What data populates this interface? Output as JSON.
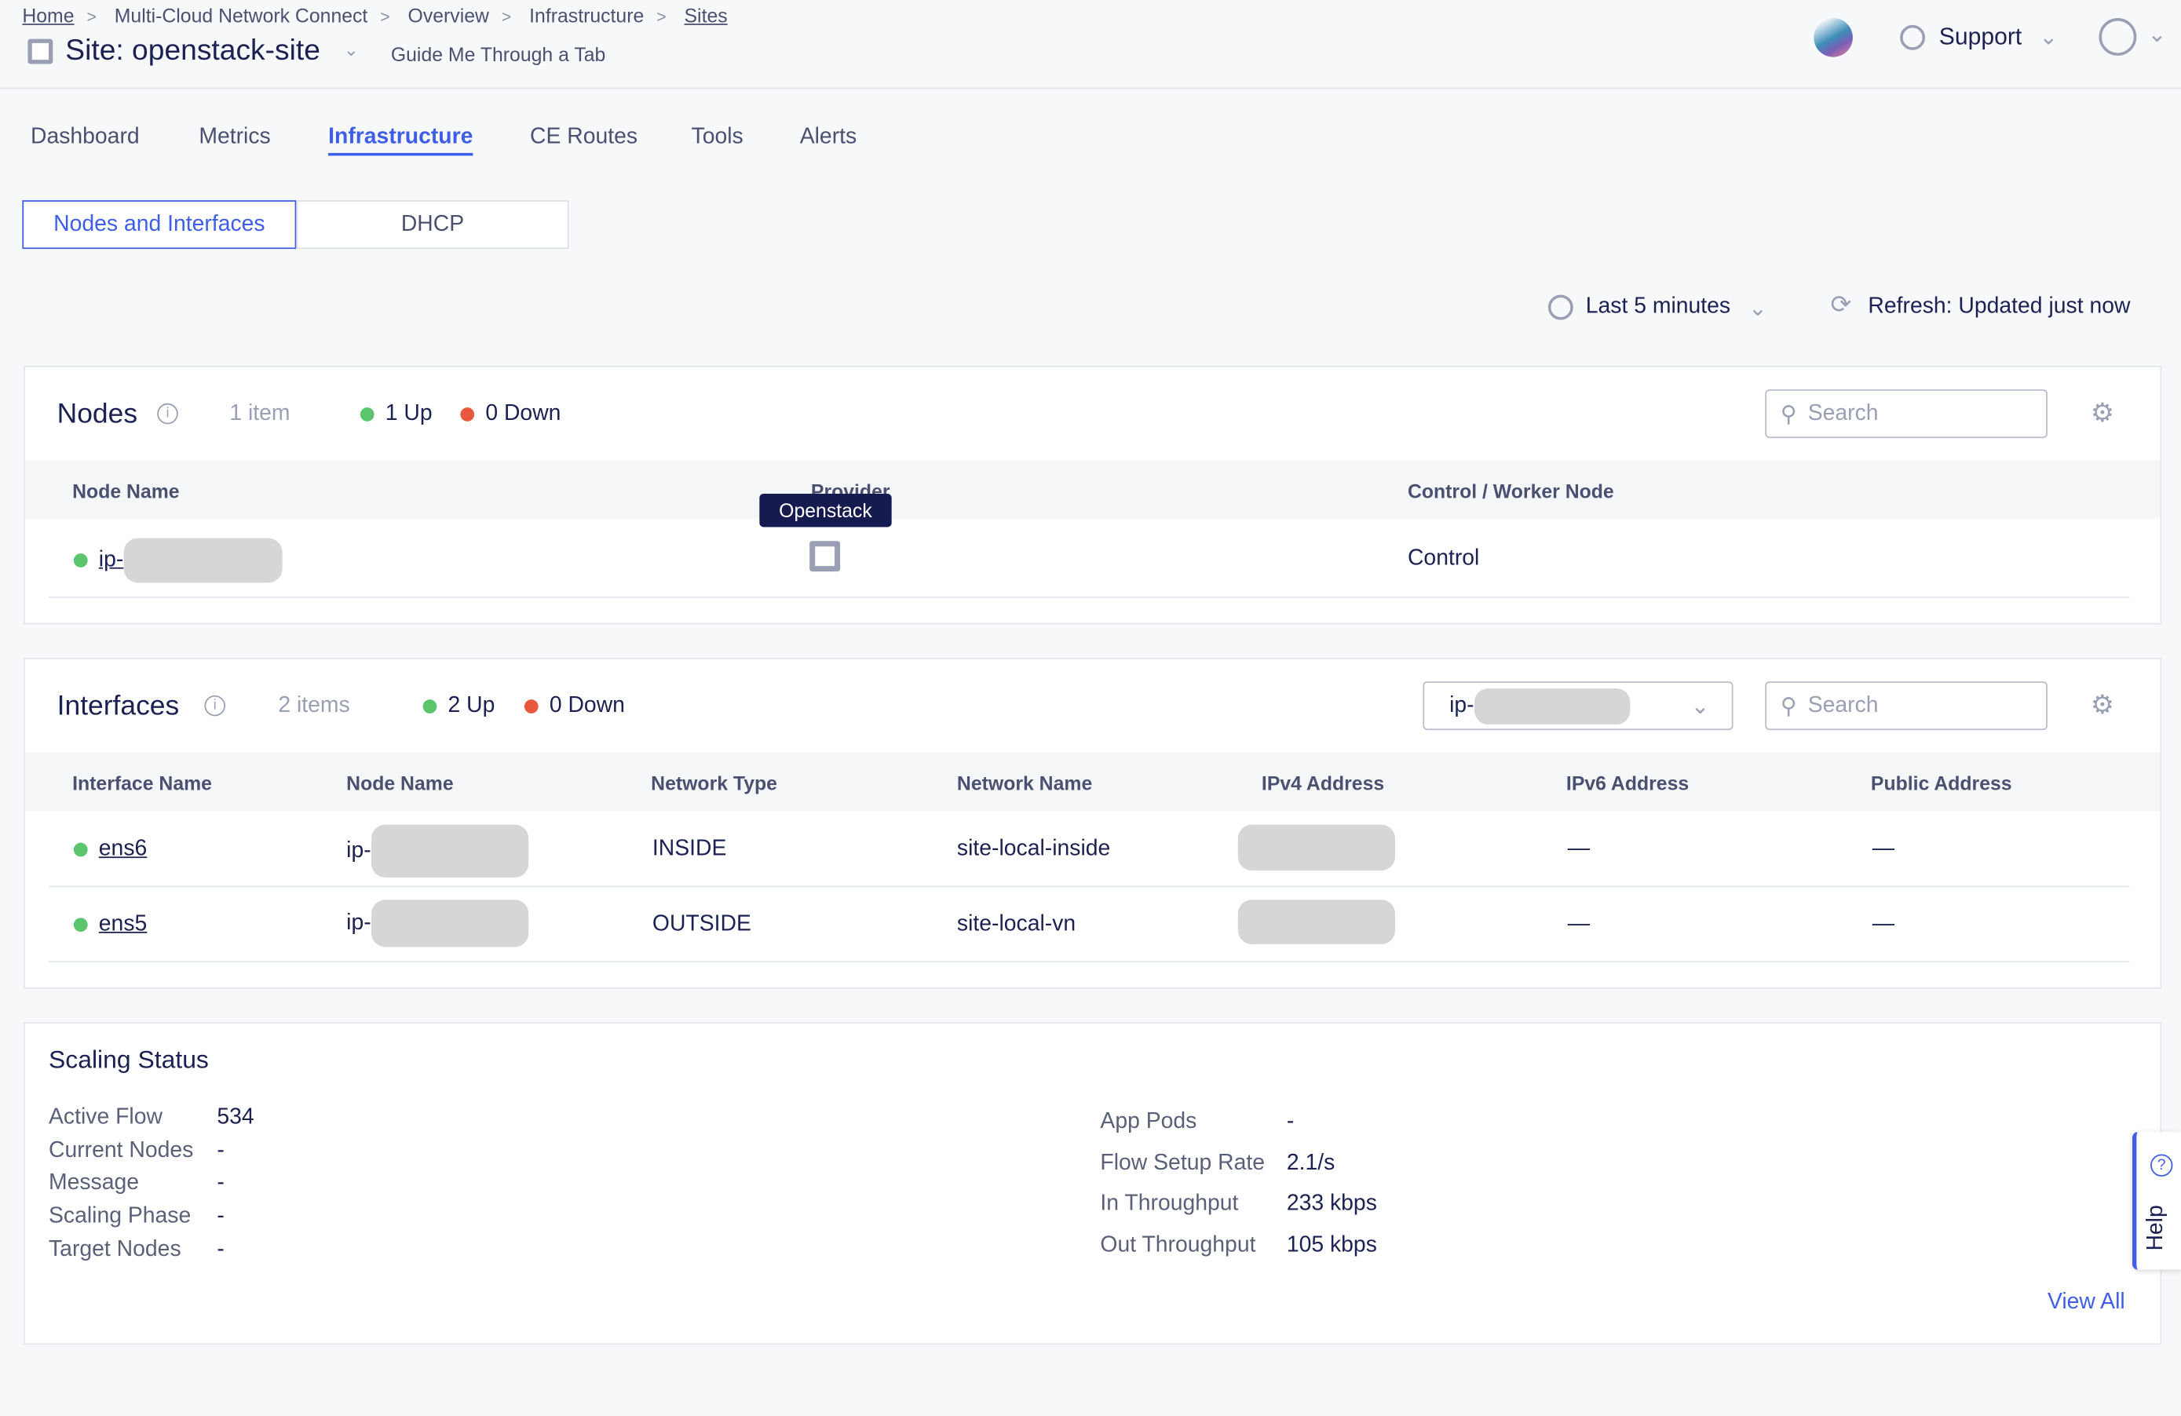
{
  "breadcrumb": [
    "Home",
    "Multi-Cloud Network Connect",
    "Overview",
    "Infrastructure",
    "Sites"
  ],
  "page_title": "Site: openstack-site",
  "guide_link": "Guide Me Through a Tab",
  "header": {
    "support": "Support"
  },
  "tabs": [
    {
      "label": "Dashboard"
    },
    {
      "label": "Metrics"
    },
    {
      "label": "Infrastructure",
      "active": true
    },
    {
      "label": "CE Routes"
    },
    {
      "label": "Tools"
    },
    {
      "label": "Alerts"
    }
  ],
  "subtabs": [
    {
      "label": "Nodes and Interfaces",
      "active": true
    },
    {
      "label": "DHCP"
    }
  ],
  "toolbar": {
    "time_range": "Last 5 minutes",
    "refresh": "Refresh: Updated just now"
  },
  "nodes": {
    "title": "Nodes",
    "count": "1 item",
    "up": "1 Up",
    "down": "0 Down",
    "search_placeholder": "Search",
    "columns": [
      "Node Name",
      "Provider",
      "Control / Worker Node"
    ],
    "tooltip": "Openstack",
    "rows": [
      {
        "name": "ip-",
        "role": "Control",
        "status": "up"
      }
    ]
  },
  "interfaces": {
    "title": "Interfaces",
    "count": "2 items",
    "up": "2 Up",
    "down": "0 Down",
    "search_placeholder": "Search",
    "node_filter": "ip-",
    "columns": [
      "Interface Name",
      "Node Name",
      "Network Type",
      "Network Name",
      "IPv4 Address",
      "IPv6 Address",
      "Public Address"
    ],
    "rows": [
      {
        "name": "ens6",
        "node": "ip-",
        "type": "INSIDE",
        "network": "site-local-inside",
        "ipv6": "—",
        "public": "—"
      },
      {
        "name": "ens5",
        "node": "ip-",
        "type": "OUTSIDE",
        "network": "site-local-vn",
        "ipv6": "—",
        "public": "—"
      }
    ]
  },
  "scaling": {
    "title": "Scaling Status",
    "left": [
      {
        "k": "Active Flow",
        "v": "534"
      },
      {
        "k": "Current Nodes",
        "v": "-"
      },
      {
        "k": "Message",
        "v": "-"
      },
      {
        "k": "Scaling Phase",
        "v": "-"
      },
      {
        "k": "Target Nodes",
        "v": "-"
      }
    ],
    "right": [
      {
        "k": "App Pods",
        "v": "-"
      },
      {
        "k": "Flow Setup Rate",
        "v": "2.1/s"
      },
      {
        "k": "In Throughput",
        "v": "233 kbps"
      },
      {
        "k": "Out Throughput",
        "v": "105 kbps"
      }
    ],
    "view_all": "View All"
  },
  "help": "Help",
  "colors": {
    "accent": "#3f5ee8",
    "up": "#5bc56b",
    "down": "#e9573f"
  }
}
